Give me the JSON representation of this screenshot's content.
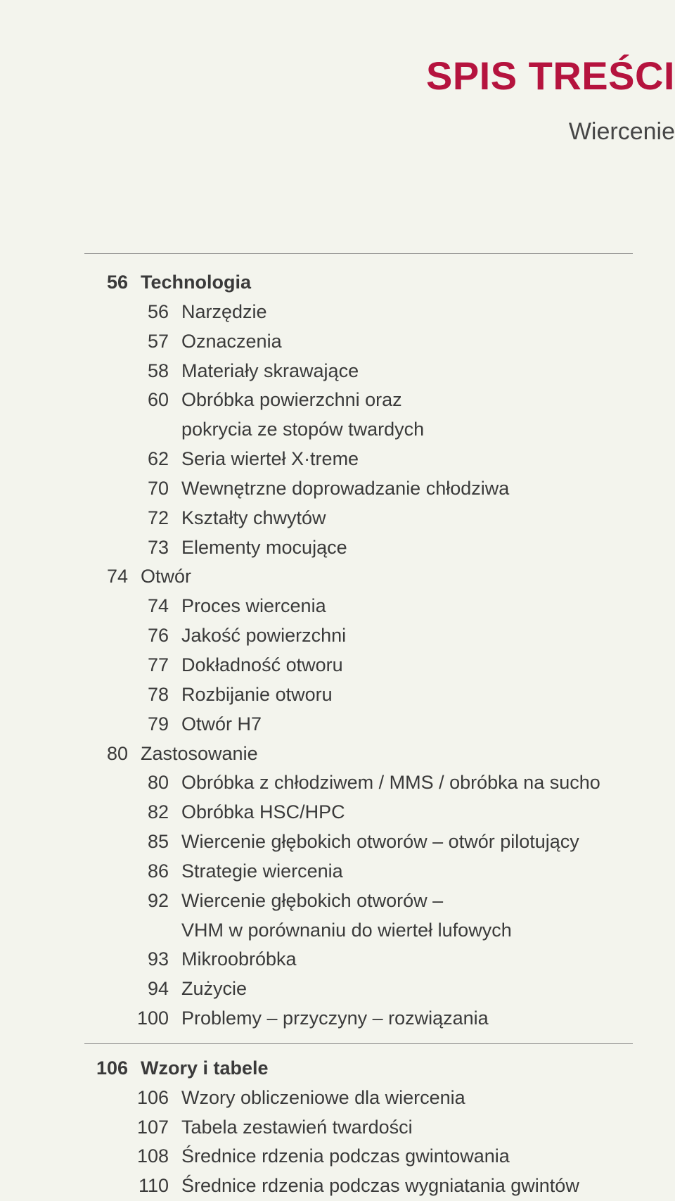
{
  "colors": {
    "background": "#f3f4ed",
    "text": "#3a3a3a",
    "title": "#b5133e",
    "rule": "#8a8a8a"
  },
  "header": {
    "title": "SPIS TREŚCI",
    "subtitle": "Wiercenie"
  },
  "sections": [
    {
      "page": "56",
      "label": "Technologia",
      "bold": true,
      "level": 0,
      "children": [
        {
          "page": "56",
          "label": "Narzędzie"
        },
        {
          "page": "57",
          "label": "Oznaczenia"
        },
        {
          "page": "58",
          "label": "Materiały skrawające"
        },
        {
          "page": "60",
          "label": "Obróbka powierzchni oraz",
          "label2": "pokrycia ze stopów twardych"
        },
        {
          "page": "62",
          "label": "Seria wierteł X·treme"
        },
        {
          "page": "70",
          "label": "Wewnętrzne doprowadzanie chłodziwa"
        },
        {
          "page": "72",
          "label": "Kształty chwytów"
        },
        {
          "page": "73",
          "label": "Elementy mocujące"
        }
      ]
    },
    {
      "page": "74",
      "label": "Otwór",
      "bold": false,
      "level": 0,
      "children": [
        {
          "page": "74",
          "label": "Proces wiercenia"
        },
        {
          "page": "76",
          "label": "Jakość powierzchni"
        },
        {
          "page": "77",
          "label": "Dokładność otworu"
        },
        {
          "page": "78",
          "label": "Rozbijanie otworu"
        },
        {
          "page": "79",
          "label": "Otwór H7"
        }
      ]
    },
    {
      "page": "80",
      "label": "Zastosowanie",
      "bold": false,
      "level": 0,
      "children": [
        {
          "page": "80",
          "label": "Obróbka z chłodziwem / MMS / obróbka na sucho"
        },
        {
          "page": "82",
          "label": "Obróbka HSC/HPC"
        },
        {
          "page": "85",
          "label": "Wiercenie głębokich otworów – otwór pilotujący"
        },
        {
          "page": "86",
          "label": "Strategie wiercenia"
        },
        {
          "page": "92",
          "label": "Wiercenie głębokich otworów –",
          "label2": "VHM w porównaniu do wierteł lufowych"
        },
        {
          "page": "93",
          "label": "Mikroobróbka"
        },
        {
          "page": "94",
          "label": "Zużycie"
        },
        {
          "page": "100",
          "label": "Problemy – przyczyny – rozwiązania"
        }
      ]
    },
    {
      "page": "106",
      "label": "Wzory i tabele",
      "bold": true,
      "level": 0,
      "rule_before": true,
      "children": [
        {
          "page": "106",
          "label": "Wzory obliczeniowe dla wiercenia"
        },
        {
          "page": "107",
          "label": "Tabela zestawień twardości"
        },
        {
          "page": "108",
          "label": "Średnice rdzenia podczas gwintowania"
        },
        {
          "page": "110",
          "label": "Średnice rdzenia podczas wygniatania gwintów"
        }
      ]
    }
  ]
}
